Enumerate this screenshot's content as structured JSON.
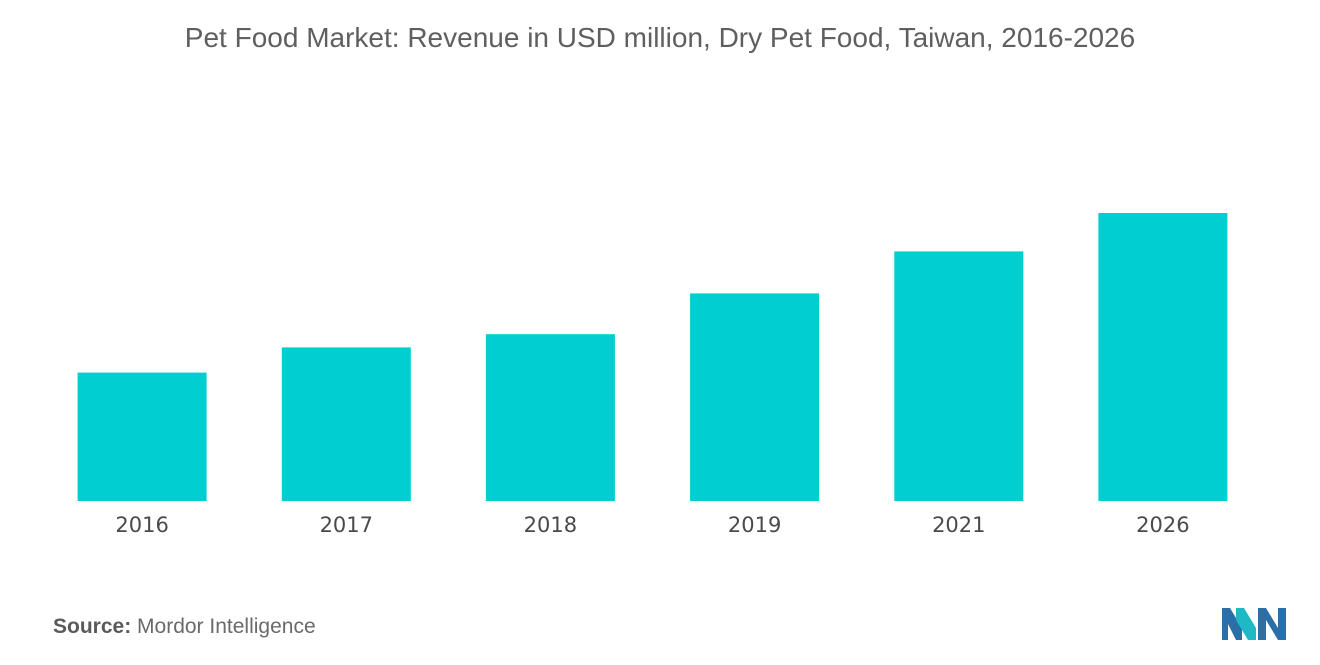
{
  "chart_data": {
    "type": "bar",
    "title": "Pet Food Market: Revenue in USD million, Dry Pet Food, Taiwan, 2016-2026",
    "xlabel": "",
    "ylabel": "",
    "categories": [
      "2016",
      "2017",
      "2018",
      "2019",
      "2021",
      "2026"
    ],
    "values": [
      107,
      128,
      139,
      173,
      208,
      240
    ],
    "ylim": [
      0,
      300
    ],
    "grid": false,
    "show_value_axis": false,
    "bar_color": "#00ced1"
  },
  "source": {
    "label": "Source:",
    "text": "Mordor Intelligence"
  },
  "logo": {
    "icon": "mordor-intelligence-logo",
    "colors": [
      "#2b6fa8",
      "#1fb9c6"
    ]
  }
}
